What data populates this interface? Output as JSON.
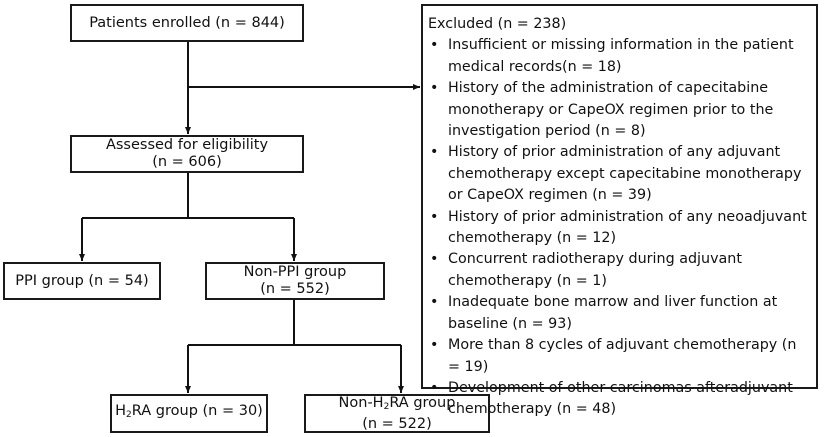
{
  "enrolled": {
    "line1": "Patients enrolled (n = 844)"
  },
  "assessed": {
    "line1": "Assessed for eligibility",
    "line2": "(n = 606)"
  },
  "ppi": {
    "line1": "PPI group (n = 54)"
  },
  "non_ppi": {
    "line1": "Non-PPI group",
    "line2": "(n = 552)"
  },
  "h2ra": {
    "prefix": "H",
    "sub": "2",
    "suffix": "RA group (n = 30)"
  },
  "non_h2ra": {
    "prefix": "Non-H",
    "sub": "2",
    "suffix": "RA group",
    "line2": "(n = 522)"
  },
  "excluded": {
    "title": "Excluded (n = 238)",
    "bullet": "•",
    "items": [
      "Insufficient or missing information in the patient medical records(n = 18)",
      "History of the administration of capecitabine monotherapy or CapeOX regimen prior to the investigation period (n = 8)",
      "History of prior administration of any adjuvant chemotherapy except capecitabine monotherapy or CapeOX regimen (n = 39)",
      "History of prior administration of any neoadjuvant chemotherapy (n = 12)",
      "Concurrent radiotherapy during adjuvant chemotherapy (n = 1)",
      "Inadequate bone marrow and liver function at baseline (n = 93)",
      "More than 8 cycles of adjuvant chemotherapy (n = 19)",
      "Development of other carcinomas afteradjuvant chemotherapy (n = 48)"
    ]
  }
}
